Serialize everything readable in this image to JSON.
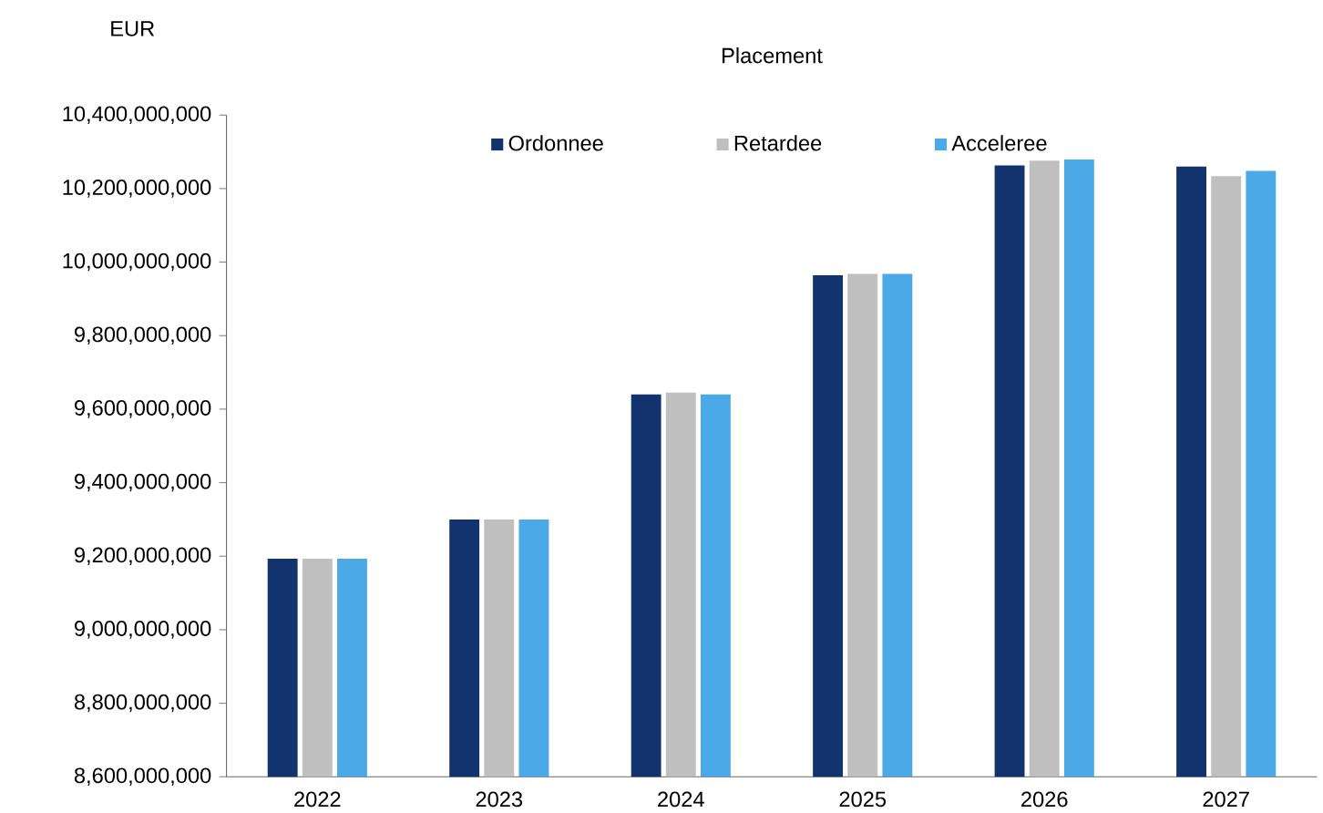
{
  "chart_data": {
    "type": "bar",
    "title": "Placement",
    "ylabel": "EUR",
    "categories": [
      "2022",
      "2023",
      "2024",
      "2025",
      "2026",
      "2027"
    ],
    "series": [
      {
        "name": "Ordonnee",
        "color": "#12336e",
        "values": [
          9193000000,
          9300000000,
          9640000000,
          9964000000,
          10263000000,
          10260000000
        ]
      },
      {
        "name": "Retardee",
        "color": "#bfbfbf",
        "values": [
          9193000000,
          9300000000,
          9645000000,
          9968000000,
          10276000000,
          10234000000
        ]
      },
      {
        "name": "Acceleree",
        "color": "#4aa9e6",
        "values": [
          9193000000,
          9300000000,
          9640000000,
          9968000000,
          10279000000,
          10248000000
        ]
      }
    ],
    "ylim": [
      8600000000,
      10400000000
    ],
    "yticks": [
      {
        "value": 8600000000,
        "label": "8,600,000,000"
      },
      {
        "value": 8800000000,
        "label": "8,800,000,000"
      },
      {
        "value": 9000000000,
        "label": "9,000,000,000"
      },
      {
        "value": 9200000000,
        "label": "9,200,000,000"
      },
      {
        "value": 9400000000,
        "label": "9,400,000,000"
      },
      {
        "value": 9600000000,
        "label": "9,600,000,000"
      },
      {
        "value": 9800000000,
        "label": "9,800,000,000"
      },
      {
        "value": 10000000000,
        "label": "10,000,000,000"
      },
      {
        "value": 10200000000,
        "label": "10,200,000,000"
      },
      {
        "value": 10400000000,
        "label": "10,400,000,000"
      }
    ],
    "legend": "top",
    "grid": false
  }
}
